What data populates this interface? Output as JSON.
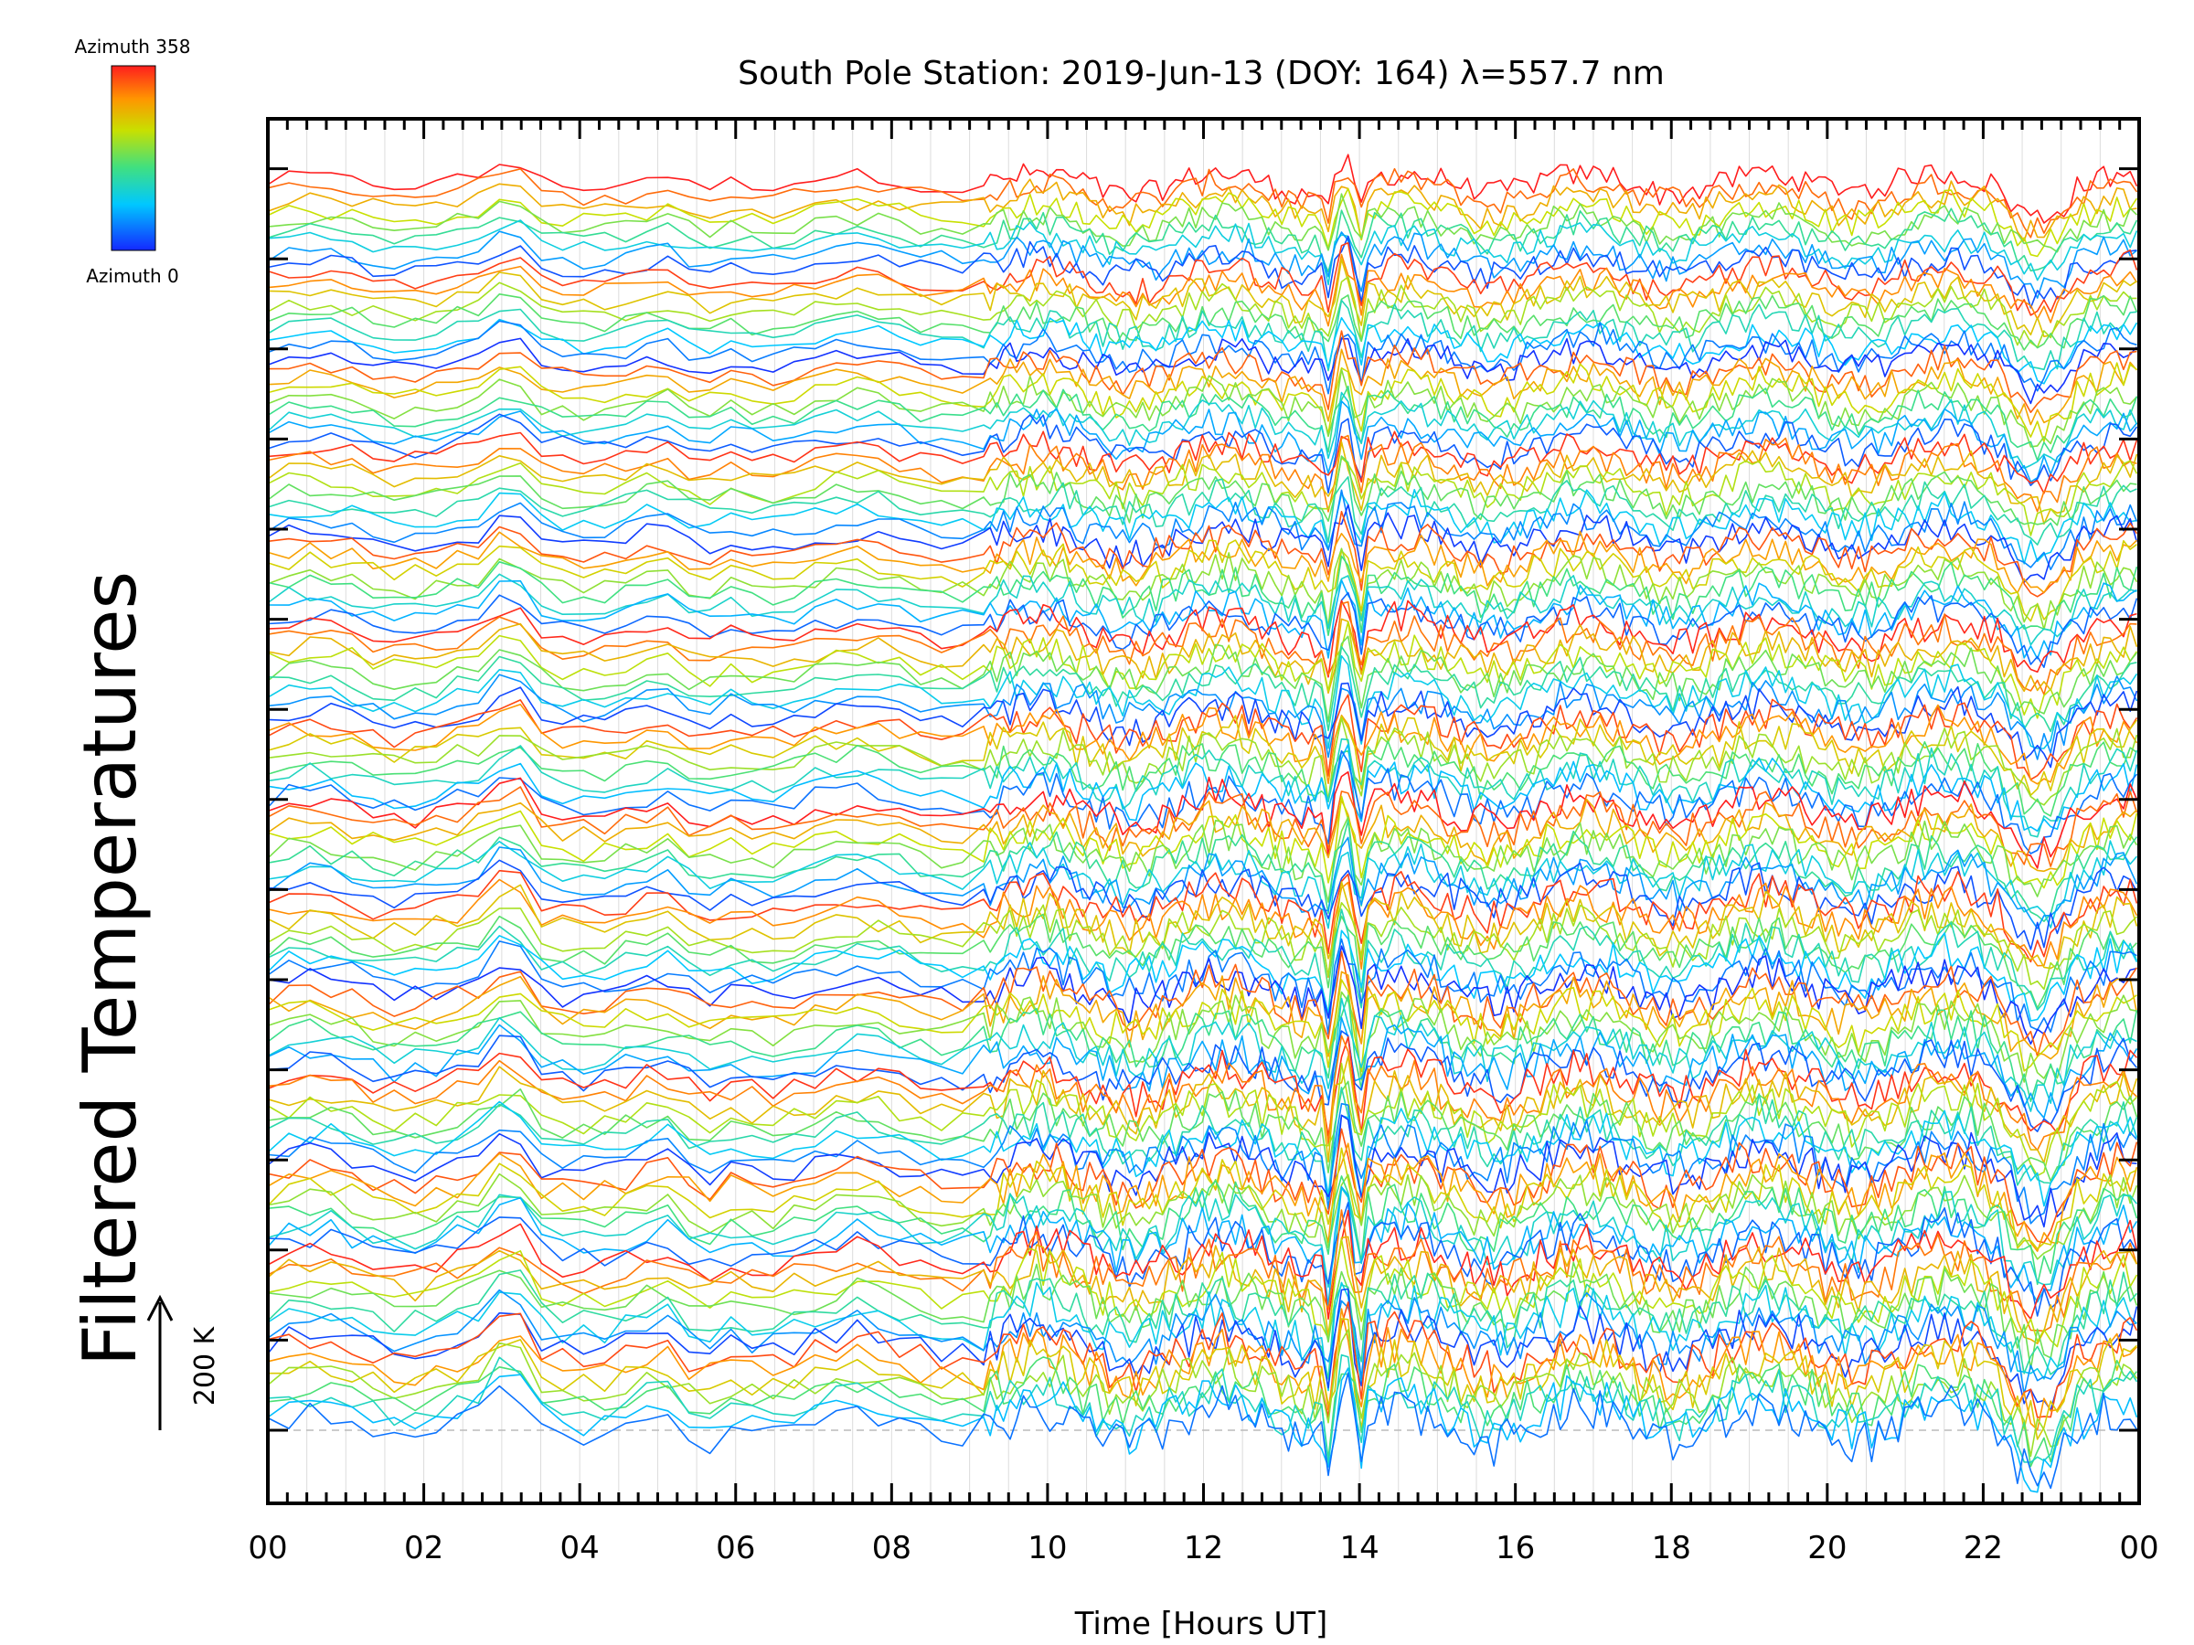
{
  "chart_data": {
    "type": "line",
    "title": "South Pole Station: 2019-Jun-13 (DOY: 164) λ=557.7 nm",
    "xlabel": "Time [Hours UT]",
    "ylabel": "Filtered Temperatures",
    "x_range_hours": [
      0,
      24
    ],
    "x_tick_labels": [
      "00",
      "02",
      "04",
      "06",
      "08",
      "10",
      "12",
      "14",
      "16",
      "18",
      "20",
      "22",
      "00"
    ],
    "grid": true,
    "colorbar": {
      "top_label": "Azimuth 358",
      "bottom_label": "Azimuth 0",
      "colormap": "rainbow (blue → green → yellow → red)",
      "colors": [
        "#1428ff",
        "#00c8ff",
        "#40e080",
        "#c8e000",
        "#ff9600",
        "#ff1e1e"
      ]
    },
    "scale_bar": {
      "label": "200 K"
    },
    "series_count": 120,
    "stack_groups": 14,
    "notes_visible": "Stacked filtered temperature traces, colored by azimuth; stronger fluctuations after ~09 UT, pronounced spike near 13.8 UT and ~22.7 UT."
  }
}
